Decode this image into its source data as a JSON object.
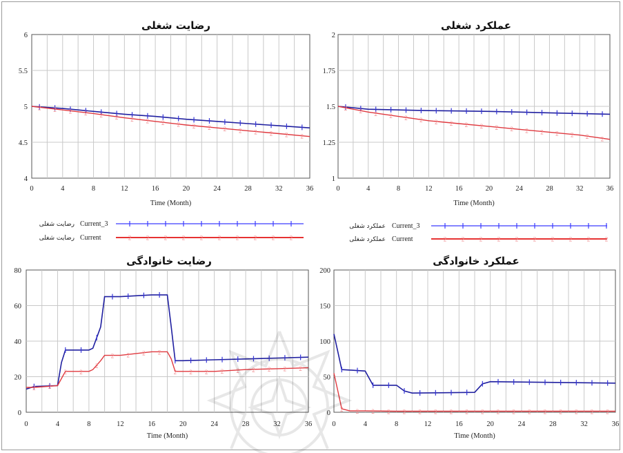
{
  "colors": {
    "current_3": "#1f1fa0",
    "current_3_marker": "#3535d8",
    "current": "#e0383e",
    "current_light": "#f08a8d",
    "legend_blue": "#3a3aff",
    "legend_red": "#e63232",
    "grid": "#c8c8c8"
  },
  "chart_data": [
    {
      "id": "tl",
      "type": "line",
      "title": "رضایت شغلی",
      "xlabel": "Time (Month)",
      "xlim": [
        0,
        36
      ],
      "ylim": [
        4,
        6
      ],
      "xticks": [
        "0",
        "4",
        "8",
        "12",
        "16",
        "20",
        "24",
        "28",
        "32",
        "36"
      ],
      "yticks": [
        {
          "value": 6,
          "label": "6"
        },
        {
          "value": 5.5,
          "label": "5.5"
        },
        {
          "value": 5,
          "label": "5"
        },
        {
          "value": 4.5,
          "label": "4.5"
        },
        {
          "value": 4,
          "label": "4"
        }
      ],
      "series": [
        {
          "name": "Current_3",
          "marker": "1",
          "x": [
            0,
            4,
            8,
            12,
            16,
            20,
            24,
            28,
            32,
            36
          ],
          "values": [
            5.0,
            4.97,
            4.93,
            4.89,
            4.86,
            4.82,
            4.79,
            4.76,
            4.73,
            4.7
          ]
        },
        {
          "name": "Current",
          "marker": "2",
          "x": [
            0,
            4,
            8,
            12,
            16,
            20,
            24,
            28,
            32,
            36
          ],
          "values": [
            5.0,
            4.95,
            4.9,
            4.84,
            4.79,
            4.74,
            4.7,
            4.66,
            4.62,
            4.58
          ]
        }
      ]
    },
    {
      "id": "tr",
      "type": "line",
      "title": "عملکرد شغلی",
      "xlabel": "Time (Month)",
      "xlim": [
        0,
        36
      ],
      "ylim": [
        1,
        2
      ],
      "xticks": [
        "0",
        "4",
        "8",
        "12",
        "16",
        "20",
        "24",
        "28",
        "32",
        "36"
      ],
      "yticks": [
        {
          "value": 2,
          "label": "2"
        },
        {
          "value": 1.75,
          "label": "1.75"
        },
        {
          "value": 1.5,
          "label": "1.5"
        },
        {
          "value": 1.25,
          "label": "1.25"
        },
        {
          "value": 1,
          "label": "1"
        }
      ],
      "series": [
        {
          "name": "Current_3",
          "marker": "1",
          "x": [
            0,
            4,
            8,
            12,
            16,
            20,
            24,
            28,
            32,
            36
          ],
          "values": [
            1.5,
            1.48,
            1.475,
            1.47,
            1.468,
            1.465,
            1.46,
            1.455,
            1.45,
            1.445
          ]
        },
        {
          "name": "Current",
          "marker": "2",
          "x": [
            0,
            4,
            8,
            12,
            16,
            20,
            24,
            28,
            32,
            36
          ],
          "values": [
            1.5,
            1.46,
            1.43,
            1.4,
            1.38,
            1.36,
            1.34,
            1.32,
            1.3,
            1.27
          ]
        }
      ]
    },
    {
      "id": "bl",
      "type": "line",
      "title": "رضایت خانوادگی",
      "xlabel": "Time (Month)",
      "xlim": [
        0,
        36
      ],
      "ylim": [
        0,
        80
      ],
      "xticks": [
        "0",
        "4",
        "8",
        "12",
        "16",
        "20",
        "24",
        "28",
        "32",
        "36"
      ],
      "yticks": [
        {
          "value": 80,
          "label": "80"
        },
        {
          "value": 60,
          "label": "60"
        },
        {
          "value": 40,
          "label": "40"
        },
        {
          "value": 20,
          "label": "20"
        },
        {
          "value": 0,
          "label": "0"
        }
      ],
      "series": [
        {
          "name": "Current_3",
          "marker": "1",
          "x": [
            0,
            1,
            4,
            4.5,
            5,
            8,
            8.5,
            9.5,
            10,
            12,
            16,
            18,
            18.5,
            19,
            20,
            24,
            28,
            32,
            36
          ],
          "values": [
            13,
            14.5,
            15,
            28,
            35,
            35,
            36,
            48,
            65,
            65,
            66,
            66,
            48,
            29,
            29,
            29.5,
            30,
            30.5,
            31
          ]
        },
        {
          "name": "Current",
          "marker": "2",
          "x": [
            0,
            1,
            4,
            4.5,
            5,
            8,
            8.5,
            9.5,
            10,
            12,
            16,
            18,
            18.5,
            19,
            20,
            24,
            28,
            32,
            36
          ],
          "values": [
            14,
            14,
            15,
            19,
            23,
            23,
            24,
            29,
            32,
            32,
            34,
            34,
            30,
            23,
            23,
            23,
            24,
            24.5,
            25
          ]
        }
      ]
    },
    {
      "id": "br",
      "type": "line",
      "title": "عملکرد خانوادگی",
      "xlabel": "Time (Month)",
      "xlim": [
        0,
        36
      ],
      "ylim": [
        0,
        200
      ],
      "xticks": [
        "0",
        "4",
        "8",
        "12",
        "16",
        "20",
        "24",
        "28",
        "32",
        "36"
      ],
      "yticks": [
        {
          "value": 200,
          "label": "200"
        },
        {
          "value": 150,
          "label": "150"
        },
        {
          "value": 100,
          "label": "100"
        },
        {
          "value": 50,
          "label": "50"
        },
        {
          "value": 0,
          "label": "0"
        }
      ],
      "series": [
        {
          "name": "Current_3",
          "marker": "1",
          "x": [
            0,
            0.5,
            1,
            4,
            5,
            8,
            9,
            10,
            18,
            19,
            20,
            36
          ],
          "values": [
            110,
            85,
            60,
            58,
            38,
            38,
            30,
            27,
            28,
            40,
            43,
            41
          ]
        },
        {
          "name": "Current",
          "marker": "2",
          "x": [
            0,
            0.5,
            1,
            2,
            4,
            8,
            16,
            36
          ],
          "values": [
            55,
            30,
            5,
            2,
            2,
            1.5,
            1.5,
            1.5
          ]
        }
      ]
    }
  ],
  "legends": [
    {
      "chart": "tl",
      "items": [
        {
          "prefix": "Current_3",
          "label": "رضایت شغلی",
          "marker": "1"
        },
        {
          "prefix": "Current",
          "label": "رضایت شغلی",
          "marker": "2"
        }
      ]
    },
    {
      "chart": "tr",
      "items": [
        {
          "prefix": "Current_3",
          "label": "عملکرد شغلی",
          "marker": "1"
        },
        {
          "prefix": "Current",
          "label": "عملکرد شغلی",
          "marker": "2"
        }
      ]
    }
  ]
}
